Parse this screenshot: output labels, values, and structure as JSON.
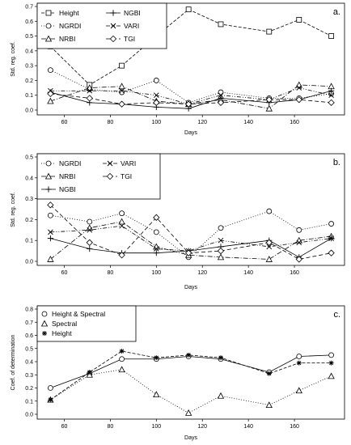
{
  "chart_data": [
    {
      "type": "line",
      "panel": "a.",
      "xlabel": "Days",
      "ylabel": "Std. reg. coef.",
      "xlim": [
        50,
        180
      ],
      "ylim": [
        0,
        0.7
      ],
      "xticks": [
        60,
        80,
        100,
        120,
        140,
        160
      ],
      "yticks": [
        0.0,
        0.1,
        0.2,
        0.3,
        0.4,
        0.5,
        0.6,
        0.7
      ],
      "legend": "top-left",
      "x": [
        54,
        71,
        85,
        100,
        114,
        128,
        149,
        162,
        176
      ],
      "series": [
        {
          "name": "Height",
          "marker": "square",
          "dash": "4,2",
          "values": [
            0.43,
            0.17,
            0.3,
            0.5,
            0.68,
            0.58,
            0.53,
            0.61,
            0.5
          ]
        },
        {
          "name": "NGRDI",
          "marker": "circle",
          "dash": "1,2",
          "values": [
            0.27,
            0.14,
            0.12,
            0.2,
            0.05,
            0.12,
            0.08,
            0.08,
            0.11
          ]
        },
        {
          "name": "NRBI",
          "marker": "triangle",
          "dash": "6,2,1,2",
          "values": [
            0.06,
            0.15,
            0.16,
            0.06,
            0.04,
            0.07,
            0.01,
            0.17,
            0.16
          ]
        },
        {
          "name": "NGBI",
          "marker": "plus",
          "dash": "none",
          "values": [
            0.12,
            0.05,
            0.04,
            0.02,
            0.01,
            0.08,
            0.05,
            0.07,
            0.13
          ]
        },
        {
          "name": "VARI",
          "marker": "cross",
          "dash": "5,2,1,2,1,2",
          "values": [
            0.13,
            0.13,
            0.13,
            0.1,
            0.04,
            0.1,
            0.07,
            0.15,
            0.1
          ]
        },
        {
          "name": "TGI",
          "marker": "diamond",
          "dash": "5,3",
          "values": [
            0.11,
            0.08,
            0.04,
            0.05,
            0.04,
            0.05,
            0.07,
            0.07,
            0.05
          ]
        }
      ]
    },
    {
      "type": "line",
      "panel": "b.",
      "xlabel": "Days",
      "ylabel": "Std. reg. coef.",
      "xlim": [
        50,
        180
      ],
      "ylim": [
        0,
        0.5
      ],
      "xticks": [
        60,
        80,
        100,
        120,
        140,
        160
      ],
      "yticks": [
        0.0,
        0.1,
        0.2,
        0.3,
        0.4,
        0.5
      ],
      "legend": "top-left",
      "x": [
        54,
        71,
        85,
        100,
        114,
        128,
        149,
        162,
        176
      ],
      "series": [
        {
          "name": "NGRDI",
          "marker": "circle",
          "dash": "1,2",
          "values": [
            0.22,
            0.19,
            0.23,
            0.14,
            0.02,
            0.16,
            0.24,
            0.15,
            0.18
          ]
        },
        {
          "name": "NRBI",
          "marker": "triangle",
          "dash": "6,2,1,2",
          "values": [
            0.01,
            0.16,
            0.19,
            0.07,
            0.03,
            0.02,
            0.01,
            0.1,
            0.12
          ]
        },
        {
          "name": "NGBI",
          "marker": "plus",
          "dash": "none",
          "values": [
            0.11,
            0.06,
            0.04,
            0.04,
            0.05,
            0.07,
            0.1,
            0.02,
            0.11
          ]
        },
        {
          "name": "VARI",
          "marker": "cross",
          "dash": "5,2,1,2,1,2",
          "values": [
            0.14,
            0.15,
            0.17,
            0.06,
            0.05,
            0.1,
            0.07,
            0.09,
            0.11
          ]
        },
        {
          "name": "TGI",
          "marker": "diamond",
          "dash": "5,3",
          "values": [
            0.27,
            0.09,
            0.03,
            0.21,
            0.04,
            0.05,
            0.09,
            0.01,
            0.04
          ]
        }
      ]
    },
    {
      "type": "line",
      "panel": "c.",
      "xlabel": "Days",
      "ylabel": "Coef. of determination",
      "xlim": [
        50,
        180
      ],
      "ylim": [
        0,
        0.8
      ],
      "xticks": [
        60,
        80,
        100,
        120,
        140,
        160
      ],
      "yticks": [
        0.0,
        0.1,
        0.2,
        0.3,
        0.4,
        0.5,
        0.6,
        0.7,
        0.8
      ],
      "legend": "top-left",
      "x": [
        54,
        71,
        85,
        100,
        114,
        128,
        149,
        162,
        176
      ],
      "series": [
        {
          "name": "Height & Spectral",
          "marker": "circle",
          "dash": "none",
          "values": [
            0.2,
            0.31,
            0.42,
            0.42,
            0.44,
            0.42,
            0.32,
            0.44,
            0.45
          ]
        },
        {
          "name": "Spectral",
          "marker": "triangle",
          "dash": "1,2",
          "values": [
            0.11,
            0.3,
            0.34,
            0.15,
            0.01,
            0.14,
            0.07,
            0.18,
            0.29
          ]
        },
        {
          "name": "Height",
          "marker": "star",
          "dash": "4,2",
          "values": [
            0.11,
            0.32,
            0.48,
            0.43,
            0.45,
            0.43,
            0.31,
            0.39,
            0.39
          ]
        }
      ]
    }
  ]
}
